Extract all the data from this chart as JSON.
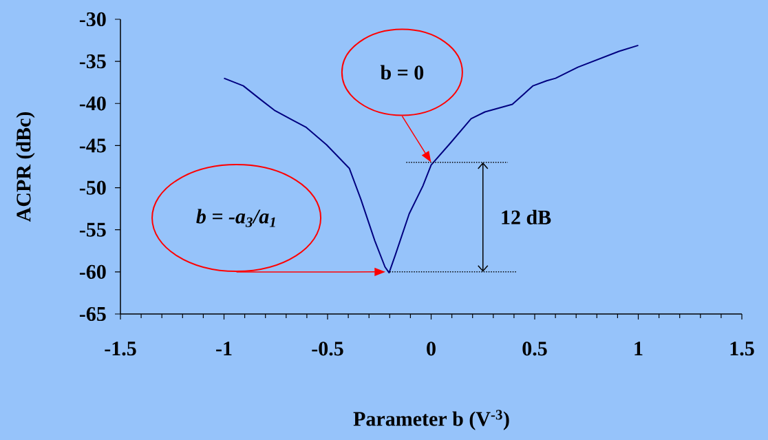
{
  "chart_data": {
    "type": "line",
    "xlabel": "Parameter b (V$^{-3}$)",
    "ylabel": "ACPR (dBc)",
    "x": [
      -1.0,
      -0.907,
      -0.82,
      -0.757,
      -0.674,
      -0.605,
      -0.505,
      -0.395,
      -0.339,
      -0.272,
      -0.223,
      -0.203,
      -0.173,
      -0.106,
      -0.04,
      0.0,
      0.093,
      0.193,
      0.26,
      0.392,
      0.492,
      0.558,
      0.601,
      0.708,
      0.907,
      1.0
    ],
    "series": [
      {
        "color": "#000080",
        "values": [
          -37.0,
          -37.9,
          -39.6,
          -40.8,
          -41.9,
          -42.8,
          -44.9,
          -47.7,
          -51.4,
          -56.3,
          -59.4,
          -60.1,
          -58.0,
          -53.1,
          -49.8,
          -47.3,
          -44.7,
          -41.8,
          -41.0,
          -40.1,
          -37.9,
          -37.3,
          -37.0,
          -35.7,
          -33.8,
          -33.1
        ]
      }
    ],
    "xlim": [
      -1.5,
      1.5
    ],
    "ylim": [
      -65,
      -30
    ],
    "xticks": [
      -1.5,
      -1,
      -0.5,
      0,
      0.5,
      1,
      1.5
    ],
    "yticks": [
      -65,
      -60,
      -55,
      -50,
      -45,
      -40,
      -35,
      -30
    ],
    "ref_lines": [
      {
        "axis": "y",
        "value": -47,
        "color": "#000000",
        "line_style": "dotted"
      },
      {
        "axis": "y",
        "value": -60,
        "color": "#000000",
        "line_style": "dotted"
      }
    ],
    "annotations": [
      "b = 0",
      "b = -a$_{3}$/a$_{1}$",
      "12 dB"
    ],
    "grid": false,
    "legend": false,
    "marker": "none",
    "line_style": "solid"
  }
}
